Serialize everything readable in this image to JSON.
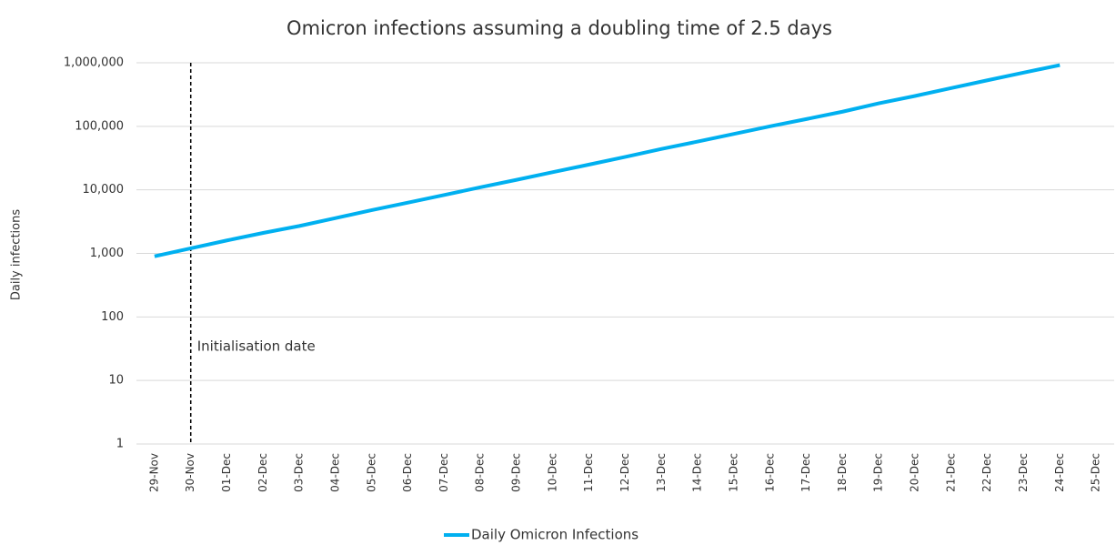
{
  "chart_data": {
    "type": "line",
    "title": "Omicron infections assuming a doubling time of 2.5 days",
    "y_label": "Daily infections",
    "categories": [
      "29-Nov",
      "30-Nov",
      "01-Dec",
      "02-Dec",
      "03-Dec",
      "04-Dec",
      "05-Dec",
      "06-Dec",
      "07-Dec",
      "08-Dec",
      "09-Dec",
      "10-Dec",
      "11-Dec",
      "12-Dec",
      "13-Dec",
      "14-Dec",
      "15-Dec",
      "16-Dec",
      "17-Dec",
      "18-Dec",
      "19-Dec",
      "20-Dec",
      "21-Dec",
      "22-Dec",
      "23-Dec",
      "24-Dec",
      "25-Dec"
    ],
    "series": [
      {
        "name": "Daily Omicron Infections",
        "color": "#00b0f0",
        "values": [
          900,
          1200,
          1600,
          2100,
          2700,
          3600,
          4800,
          6300,
          8300,
          11000,
          14400,
          19000,
          25000,
          33000,
          44000,
          57600,
          76000,
          100000,
          130000,
          170000,
          230000,
          300000,
          400000,
          530000,
          700000,
          920000,
          null
        ]
      }
    ],
    "ylim": [
      1,
      1000000
    ],
    "log_y": true,
    "grid": true,
    "yticks": [
      1,
      10,
      100,
      {
        "value": 1000,
        "label": "1,000"
      },
      {
        "value": 10000,
        "label": "10,000"
      },
      {
        "value": 100000,
        "label": "100,000"
      },
      {
        "value": 1000000,
        "label": "1,000,000"
      }
    ],
    "annotation": {
      "text": "Initialisation date",
      "x": "30-Nov"
    },
    "legend": "bottom"
  }
}
